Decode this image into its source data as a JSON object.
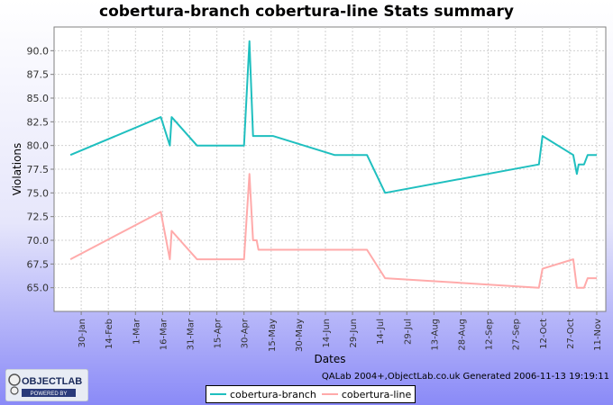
{
  "chart_data": {
    "type": "line",
    "title": "cobertura-branch cobertura-line  Stats summary",
    "xlabel": "Dates",
    "ylabel": "Violations",
    "ylim": [
      62.5,
      92.5
    ],
    "y_ticks": [
      "65.0",
      "67.5",
      "70.0",
      "72.5",
      "75.0",
      "77.5",
      "80.0",
      "82.5",
      "85.0",
      "87.5",
      "90.0"
    ],
    "x_ticks": [
      "30-Jan",
      "14-Feb",
      "1-Mar",
      "16-Mar",
      "31-Mar",
      "15-Apr",
      "30-Apr",
      "15-May",
      "30-May",
      "14-Jun",
      "29-Jun",
      "14-Jul",
      "29-Jul",
      "13-Aug",
      "28-Aug",
      "12-Sep",
      "27-Sep",
      "12-Oct",
      "27-Oct",
      "11-Nov"
    ],
    "xlim": [
      "2006-01-15",
      "2006-11-16"
    ],
    "grid": true,
    "legend_position": "bottom",
    "series": [
      {
        "name": "cobertura-branch",
        "color": "#1fbfbf",
        "points": [
          [
            "2006-01-24",
            79
          ],
          [
            "2006-03-15",
            83
          ],
          [
            "2006-03-20",
            80
          ],
          [
            "2006-03-21",
            83
          ],
          [
            "2006-04-04",
            80
          ],
          [
            "2006-04-30",
            80
          ],
          [
            "2006-05-03",
            91
          ],
          [
            "2006-05-05",
            81
          ],
          [
            "2006-05-13",
            81
          ],
          [
            "2006-05-16",
            81
          ],
          [
            "2006-06-19",
            79
          ],
          [
            "2006-07-07",
            79
          ],
          [
            "2006-07-17",
            75
          ],
          [
            "2006-10-10",
            78
          ],
          [
            "2006-10-12",
            81
          ],
          [
            "2006-10-29",
            79
          ],
          [
            "2006-10-31",
            77
          ],
          [
            "2006-11-01",
            78
          ],
          [
            "2006-11-04",
            78
          ],
          [
            "2006-11-06",
            79
          ],
          [
            "2006-11-11",
            79
          ]
        ]
      },
      {
        "name": "cobertura-line",
        "color": "#ffaaaa",
        "points": [
          [
            "2006-01-24",
            68
          ],
          [
            "2006-03-15",
            73
          ],
          [
            "2006-03-20",
            68
          ],
          [
            "2006-03-21",
            71
          ],
          [
            "2006-04-04",
            68
          ],
          [
            "2006-04-30",
            68
          ],
          [
            "2006-05-03",
            77
          ],
          [
            "2006-05-05",
            70
          ],
          [
            "2006-05-07",
            70
          ],
          [
            "2006-05-08",
            69
          ],
          [
            "2006-05-16",
            69
          ],
          [
            "2006-06-19",
            69
          ],
          [
            "2006-07-07",
            69
          ],
          [
            "2006-07-17",
            66
          ],
          [
            "2006-10-10",
            65
          ],
          [
            "2006-10-12",
            67
          ],
          [
            "2006-10-29",
            68
          ],
          [
            "2006-10-31",
            65
          ],
          [
            "2006-11-04",
            65
          ],
          [
            "2006-11-06",
            66
          ],
          [
            "2006-11-11",
            66
          ]
        ]
      }
    ]
  },
  "footer": "QALab 2004+,ObjectLab.co.uk  Generated 2006-11-13 19:19:11",
  "logo": {
    "text": "OBJECTLAB",
    "tagline": "POWERED BY"
  }
}
